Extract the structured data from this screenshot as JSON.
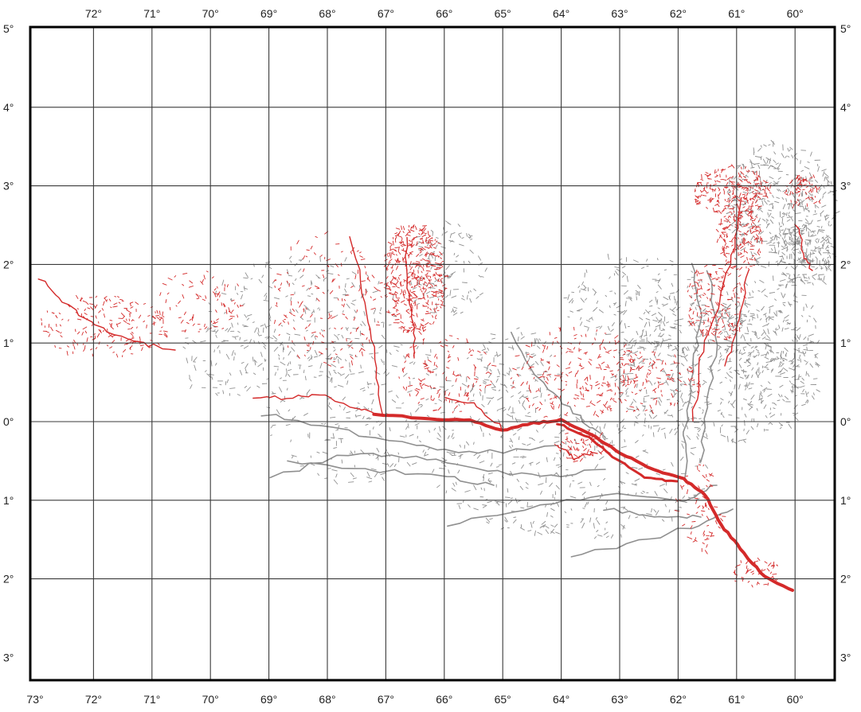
{
  "map": {
    "top_longitude_labels": [
      "72°",
      "71°",
      "70°",
      "69°",
      "68°",
      "67°",
      "66°",
      "65°",
      "64°",
      "63°",
      "62°",
      "61°",
      "60°"
    ],
    "bottom_longitude_labels": [
      "73°",
      "72°",
      "71°",
      "70°",
      "69°",
      "68°",
      "67°",
      "66°",
      "65°",
      "64°",
      "63°",
      "62°",
      "61°",
      "60°"
    ],
    "latitude_labels": [
      "5°",
      "4°",
      "3°",
      "2°",
      "1°",
      "0°",
      "1°",
      "2°",
      "3°"
    ],
    "colors": {
      "frame": "#000000",
      "grid": "#3a3a3a",
      "channels_red": "#d42a2a",
      "channels_gray": "#8f8f8f"
    },
    "layers": [
      {
        "name": "river-network-gray",
        "color": "gray"
      },
      {
        "name": "river-network-red",
        "color": "red"
      }
    ]
  }
}
